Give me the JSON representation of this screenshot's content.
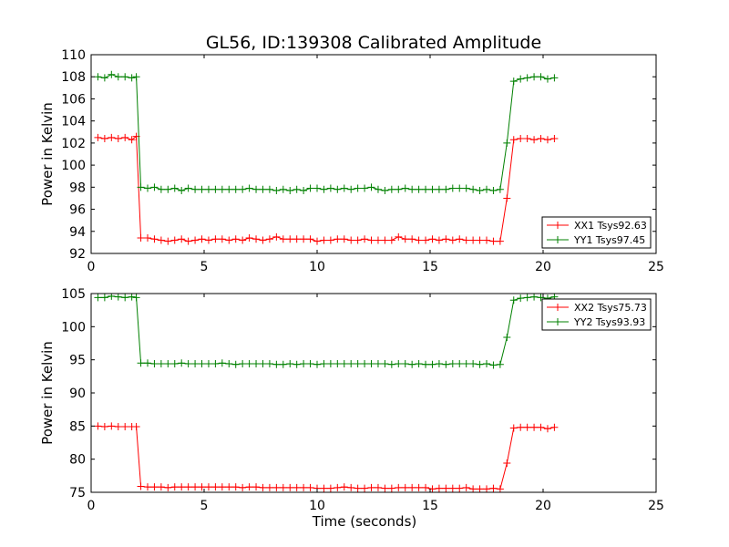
{
  "title": "GL56, ID:139308 Calibrated Amplitude",
  "chart_data": [
    {
      "type": "line",
      "panel": "top",
      "xlabel": "",
      "ylabel": "Power in Kelvin",
      "xlim": [
        0,
        25
      ],
      "ylim": [
        92,
        110
      ],
      "xticks": [
        0,
        5,
        10,
        15,
        20,
        25
      ],
      "yticks": [
        92,
        94,
        96,
        98,
        100,
        102,
        104,
        106,
        108,
        110
      ],
      "legend_position": "bottom-right",
      "series": [
        {
          "name": "XX1 Tsys92.63",
          "color": "#ff0000",
          "x": [
            0.3,
            0.6,
            0.9,
            1.2,
            1.5,
            1.8,
            2.0,
            2.2,
            2.5,
            2.8,
            3.1,
            3.4,
            3.7,
            4.0,
            4.3,
            4.6,
            4.9,
            5.2,
            5.5,
            5.8,
            6.1,
            6.4,
            6.7,
            7.0,
            7.3,
            7.6,
            7.9,
            8.2,
            8.5,
            8.8,
            9.1,
            9.4,
            9.7,
            10.0,
            10.3,
            10.6,
            10.9,
            11.2,
            11.5,
            11.8,
            12.1,
            12.4,
            12.7,
            13.0,
            13.3,
            13.6,
            13.9,
            14.2,
            14.5,
            14.8,
            15.1,
            15.4,
            15.7,
            16.0,
            16.3,
            16.6,
            16.9,
            17.2,
            17.5,
            17.8,
            18.1,
            18.4,
            18.7,
            19.0,
            19.3,
            19.6,
            19.9,
            20.2,
            20.5
          ],
          "y": [
            102.5,
            102.4,
            102.5,
            102.4,
            102.5,
            102.3,
            102.6,
            93.4,
            93.4,
            93.3,
            93.2,
            93.1,
            93.2,
            93.3,
            93.1,
            93.2,
            93.3,
            93.2,
            93.3,
            93.3,
            93.2,
            93.3,
            93.2,
            93.4,
            93.3,
            93.2,
            93.3,
            93.5,
            93.3,
            93.3,
            93.3,
            93.3,
            93.3,
            93.1,
            93.2,
            93.2,
            93.3,
            93.3,
            93.2,
            93.2,
            93.3,
            93.2,
            93.2,
            93.2,
            93.2,
            93.5,
            93.3,
            93.3,
            93.2,
            93.2,
            93.3,
            93.2,
            93.3,
            93.2,
            93.3,
            93.2,
            93.2,
            93.2,
            93.2,
            93.1,
            93.1,
            97.0,
            102.3,
            102.4,
            102.4,
            102.3,
            102.4,
            102.3,
            102.4
          ]
        },
        {
          "name": "YY1 Tsys97.45",
          "color": "#008000",
          "x": [
            0.3,
            0.6,
            0.9,
            1.2,
            1.5,
            1.8,
            2.0,
            2.2,
            2.5,
            2.8,
            3.1,
            3.4,
            3.7,
            4.0,
            4.3,
            4.6,
            4.9,
            5.2,
            5.5,
            5.8,
            6.1,
            6.4,
            6.7,
            7.0,
            7.3,
            7.6,
            7.9,
            8.2,
            8.5,
            8.8,
            9.1,
            9.4,
            9.7,
            10.0,
            10.3,
            10.6,
            10.9,
            11.2,
            11.5,
            11.8,
            12.1,
            12.4,
            12.7,
            13.0,
            13.3,
            13.6,
            13.9,
            14.2,
            14.5,
            14.8,
            15.1,
            15.4,
            15.7,
            16.0,
            16.3,
            16.6,
            16.9,
            17.2,
            17.5,
            17.8,
            18.1,
            18.4,
            18.7,
            19.0,
            19.3,
            19.6,
            19.9,
            20.2,
            20.5
          ],
          "y": [
            108.0,
            107.9,
            108.2,
            108.0,
            108.0,
            107.9,
            108.0,
            98.0,
            97.9,
            98.0,
            97.8,
            97.8,
            97.9,
            97.7,
            97.9,
            97.8,
            97.8,
            97.8,
            97.8,
            97.8,
            97.8,
            97.8,
            97.8,
            97.9,
            97.8,
            97.8,
            97.8,
            97.7,
            97.8,
            97.7,
            97.8,
            97.7,
            97.9,
            97.9,
            97.8,
            97.9,
            97.8,
            97.9,
            97.8,
            97.9,
            97.9,
            98.0,
            97.8,
            97.7,
            97.8,
            97.8,
            97.9,
            97.8,
            97.8,
            97.8,
            97.8,
            97.8,
            97.8,
            97.9,
            97.9,
            97.9,
            97.8,
            97.7,
            97.8,
            97.7,
            97.8,
            102.0,
            107.6,
            107.8,
            107.9,
            108.0,
            108.0,
            107.8,
            107.9
          ]
        }
      ]
    },
    {
      "type": "line",
      "panel": "bottom",
      "xlabel": "Time (seconds)",
      "ylabel": "Power in Kelvin",
      "xlim": [
        0,
        25
      ],
      "ylim": [
        75,
        105
      ],
      "xticks": [
        0,
        5,
        10,
        15,
        20,
        25
      ],
      "yticks": [
        75,
        80,
        85,
        90,
        95,
        100,
        105
      ],
      "legend_position": "top-right",
      "series": [
        {
          "name": "XX2 Tsys75.73",
          "color": "#ff0000",
          "x": [
            0.3,
            0.6,
            0.9,
            1.2,
            1.5,
            1.8,
            2.0,
            2.2,
            2.5,
            2.8,
            3.1,
            3.4,
            3.7,
            4.0,
            4.3,
            4.6,
            4.9,
            5.2,
            5.5,
            5.8,
            6.1,
            6.4,
            6.7,
            7.0,
            7.3,
            7.6,
            7.9,
            8.2,
            8.5,
            8.8,
            9.1,
            9.4,
            9.7,
            10.0,
            10.3,
            10.6,
            10.9,
            11.2,
            11.5,
            11.8,
            12.1,
            12.4,
            12.7,
            13.0,
            13.3,
            13.6,
            13.9,
            14.2,
            14.5,
            14.8,
            15.1,
            15.4,
            15.7,
            16.0,
            16.3,
            16.6,
            16.9,
            17.2,
            17.5,
            17.8,
            18.1,
            18.4,
            18.7,
            19.0,
            19.3,
            19.6,
            19.9,
            20.2,
            20.5
          ],
          "y": [
            85.0,
            84.9,
            85.0,
            84.9,
            84.9,
            84.9,
            84.9,
            75.9,
            75.8,
            75.8,
            75.8,
            75.7,
            75.8,
            75.8,
            75.8,
            75.8,
            75.8,
            75.8,
            75.8,
            75.8,
            75.8,
            75.8,
            75.7,
            75.8,
            75.8,
            75.7,
            75.7,
            75.7,
            75.7,
            75.7,
            75.7,
            75.7,
            75.7,
            75.6,
            75.6,
            75.6,
            75.7,
            75.8,
            75.7,
            75.6,
            75.6,
            75.7,
            75.7,
            75.6,
            75.6,
            75.7,
            75.7,
            75.7,
            75.7,
            75.7,
            75.5,
            75.6,
            75.6,
            75.6,
            75.6,
            75.7,
            75.5,
            75.5,
            75.5,
            75.6,
            75.5,
            79.4,
            84.7,
            84.8,
            84.8,
            84.8,
            84.8,
            84.6,
            84.8
          ]
        },
        {
          "name": "YY2 Tsys93.93",
          "color": "#008000",
          "x": [
            0.3,
            0.6,
            0.9,
            1.2,
            1.5,
            1.8,
            2.0,
            2.2,
            2.5,
            2.8,
            3.1,
            3.4,
            3.7,
            4.0,
            4.3,
            4.6,
            4.9,
            5.2,
            5.5,
            5.8,
            6.1,
            6.4,
            6.7,
            7.0,
            7.3,
            7.6,
            7.9,
            8.2,
            8.5,
            8.8,
            9.1,
            9.4,
            9.7,
            10.0,
            10.3,
            10.6,
            10.9,
            11.2,
            11.5,
            11.8,
            12.1,
            12.4,
            12.7,
            13.0,
            13.3,
            13.6,
            13.9,
            14.2,
            14.5,
            14.8,
            15.1,
            15.4,
            15.7,
            16.0,
            16.3,
            16.6,
            16.9,
            17.2,
            17.5,
            17.8,
            18.1,
            18.4,
            18.7,
            19.0,
            19.3,
            19.6,
            19.9,
            20.2,
            20.5
          ],
          "y": [
            104.4,
            104.4,
            104.6,
            104.5,
            104.4,
            104.5,
            104.4,
            94.5,
            94.5,
            94.4,
            94.4,
            94.4,
            94.4,
            94.5,
            94.4,
            94.4,
            94.4,
            94.4,
            94.4,
            94.5,
            94.4,
            94.3,
            94.4,
            94.4,
            94.4,
            94.4,
            94.4,
            94.3,
            94.3,
            94.4,
            94.3,
            94.4,
            94.4,
            94.3,
            94.4,
            94.4,
            94.4,
            94.4,
            94.4,
            94.4,
            94.4,
            94.4,
            94.4,
            94.4,
            94.3,
            94.4,
            94.4,
            94.3,
            94.4,
            94.3,
            94.3,
            94.4,
            94.3,
            94.4,
            94.4,
            94.4,
            94.4,
            94.3,
            94.4,
            94.2,
            94.3,
            98.4,
            104.0,
            104.3,
            104.4,
            104.5,
            104.4,
            104.3,
            104.5
          ]
        }
      ]
    }
  ]
}
